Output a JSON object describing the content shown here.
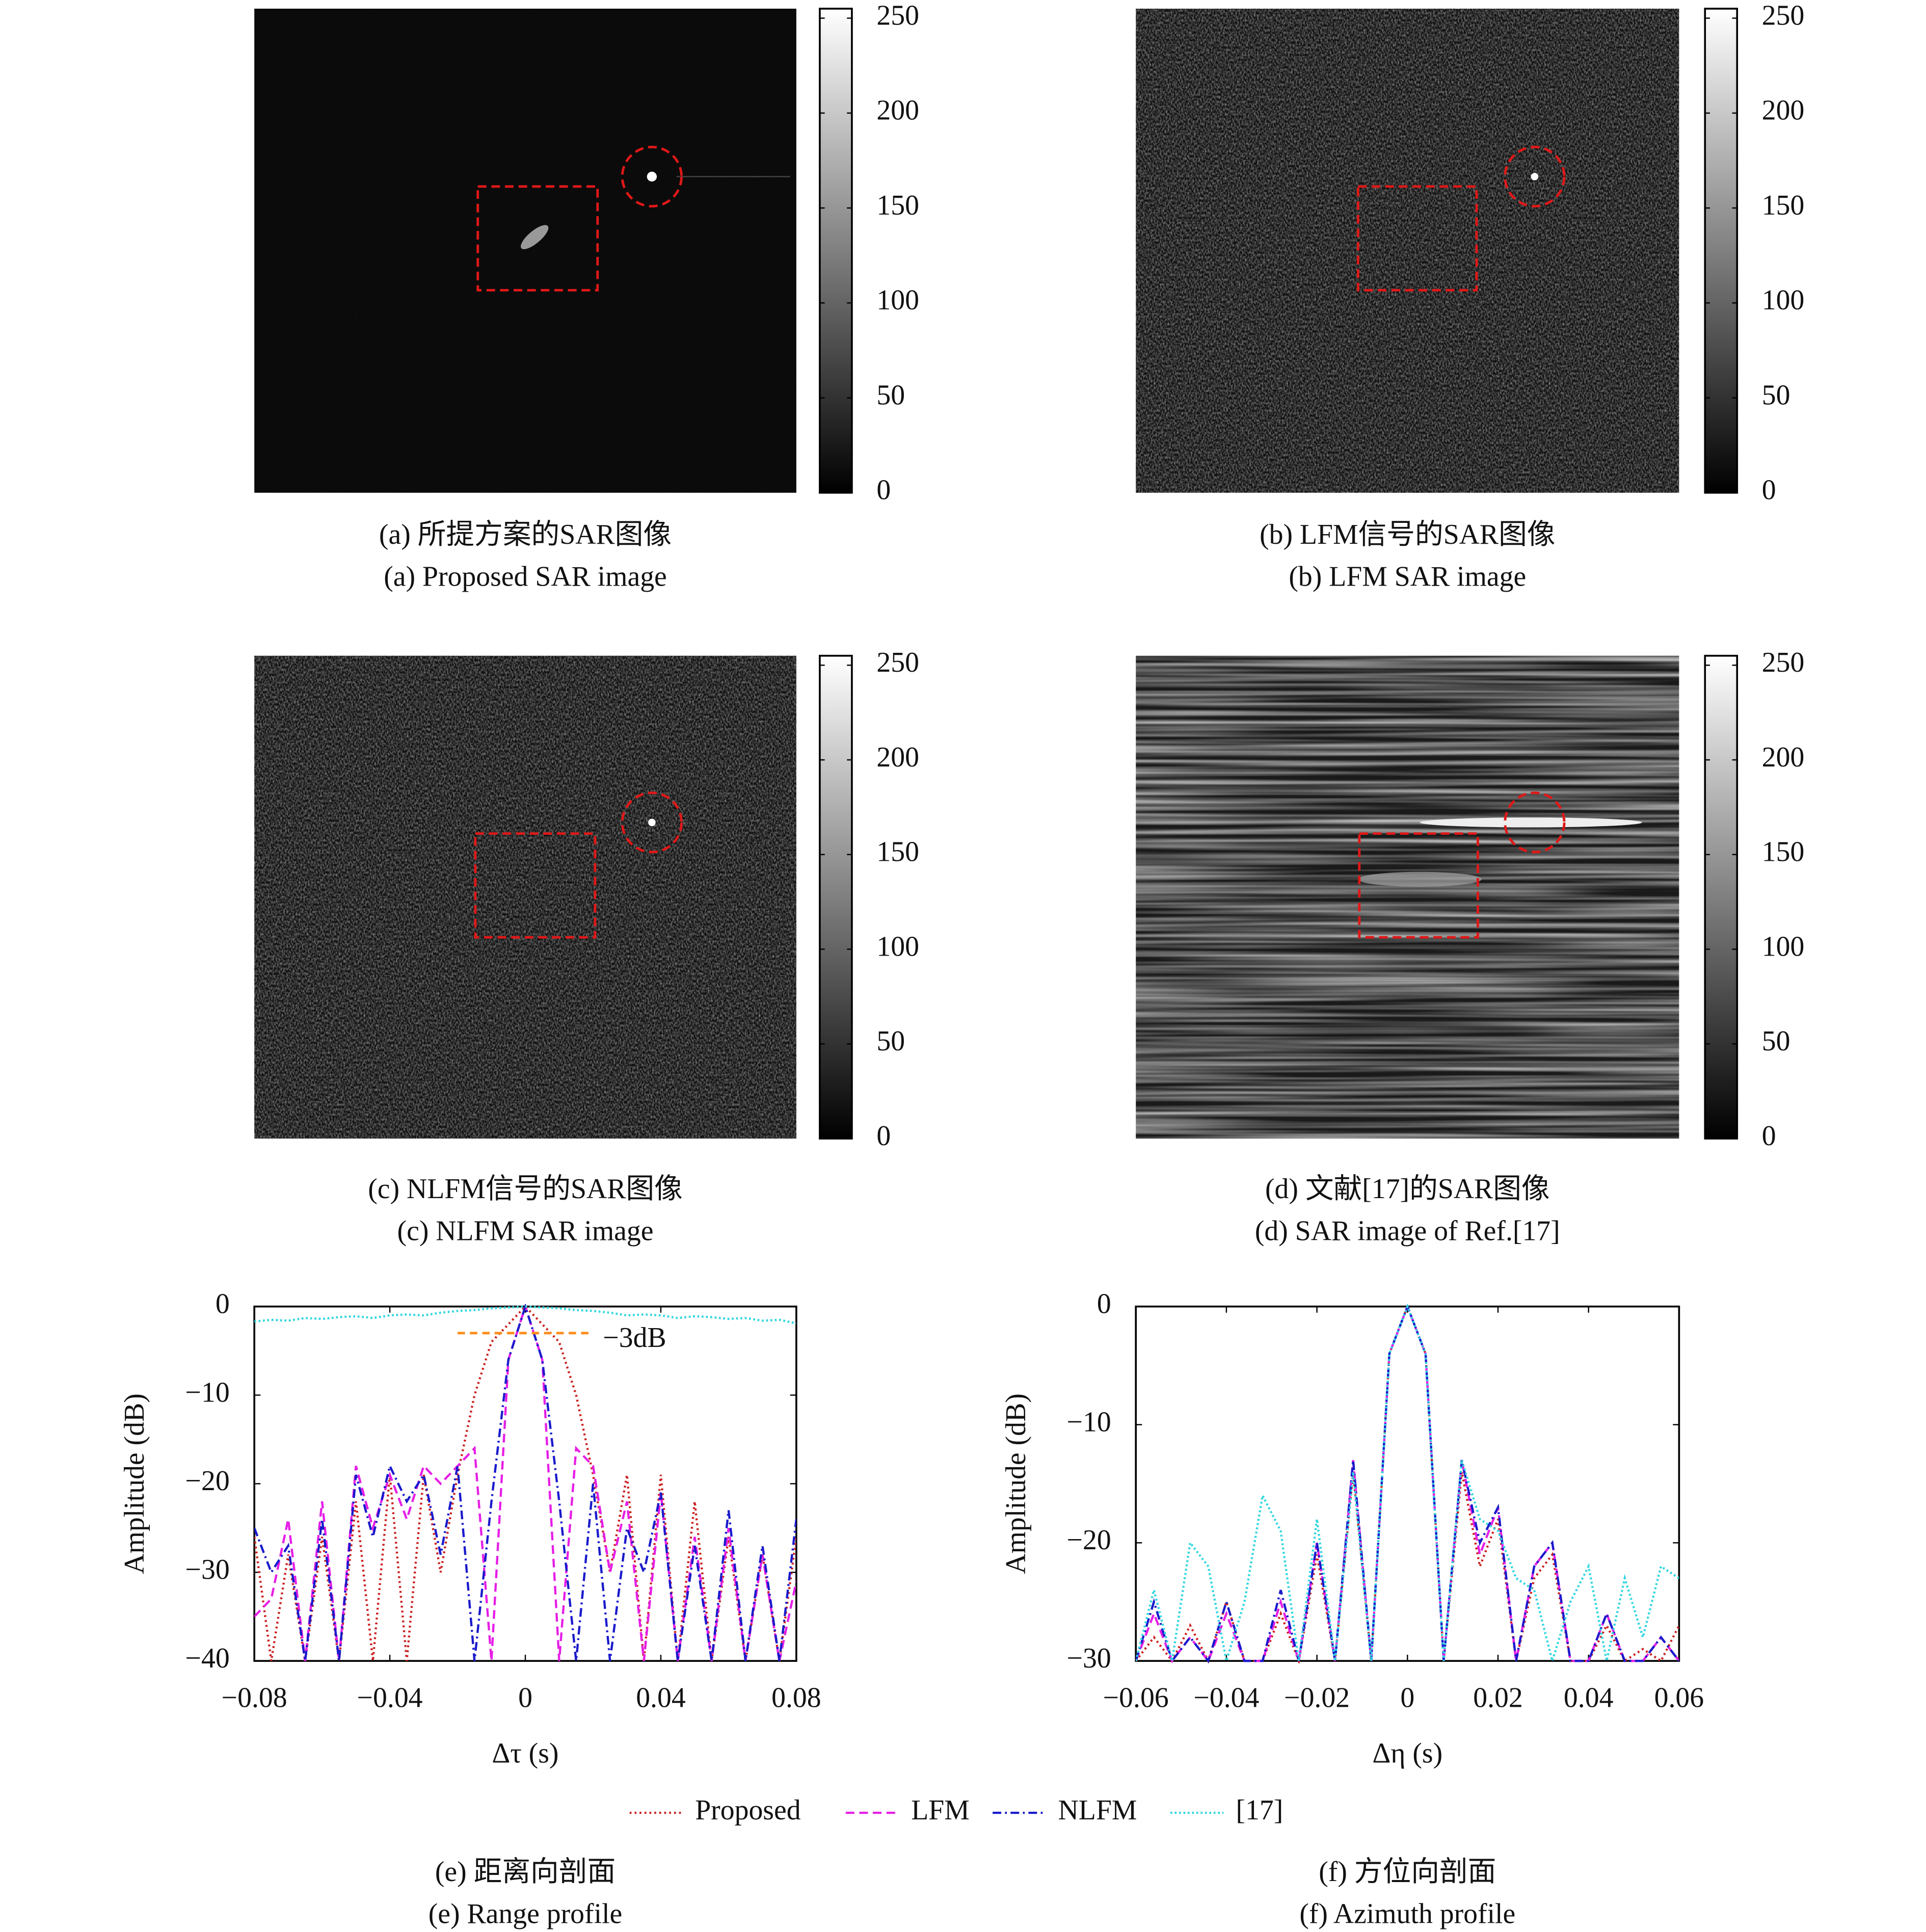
{
  "images": [
    {
      "caption_zh": "(a) 所提方案的SAR图像",
      "caption_en": "(a) Proposed SAR image"
    },
    {
      "caption_zh": "(b) LFM信号的SAR图像",
      "caption_en": "(b) LFM SAR image"
    },
    {
      "caption_zh": "(c) NLFM信号的SAR图像",
      "caption_en": "(c) NLFM SAR image"
    },
    {
      "caption_zh": "(d) 文献[17]的SAR图像",
      "caption_en": "(d) SAR image of Ref.[17]"
    }
  ],
  "colorbar": {
    "ylim": [
      0,
      255
    ],
    "yticks": [
      0,
      50,
      100,
      150,
      200,
      250
    ]
  },
  "chart_data": [
    {
      "type": "line",
      "caption_zh": "(e) 距离向剖面",
      "caption_en": "(e) Range profile",
      "xlabel": "Δτ (s)",
      "ylabel": "Amplitude (dB)",
      "xlim": [
        -0.08,
        0.08
      ],
      "ylim": [
        -40,
        0
      ],
      "xticks": [
        {
          "value": -0.08,
          "label": "−0.08"
        },
        {
          "value": -0.04,
          "label": "−0.04"
        },
        0,
        0.04,
        0.08
      ],
      "yticks": [
        {
          "value": -40,
          "label": "−40"
        },
        {
          "value": -30,
          "label": "−30"
        },
        {
          "value": -20,
          "label": "−20"
        },
        {
          "value": -10,
          "label": "−10"
        },
        0
      ],
      "annotation": {
        "text": "−3dB",
        "y": -3,
        "x": [
          -0.02,
          0.02
        ],
        "color": "#ff8c1a"
      },
      "x": [
        -0.08,
        -0.075,
        -0.07,
        -0.065,
        -0.06,
        -0.055,
        -0.05,
        -0.045,
        -0.04,
        -0.035,
        -0.03,
        -0.025,
        -0.02,
        -0.015,
        -0.01,
        -0.005,
        0,
        0.005,
        0.01,
        0.015,
        0.02,
        0.025,
        0.03,
        0.035,
        0.04,
        0.045,
        0.05,
        0.055,
        0.06,
        0.065,
        0.07,
        0.075,
        0.08
      ],
      "series": [
        {
          "name": "Proposed",
          "color": "#cc1f1f",
          "values": [
            -26,
            -40,
            -28,
            -40,
            -26,
            -40,
            -22,
            -40,
            -19,
            -40,
            -19,
            -30,
            -19,
            -10,
            -4,
            -2,
            0,
            -2,
            -4,
            -10,
            -19,
            -30,
            -19,
            -40,
            -19,
            -40,
            -22,
            -40,
            -26,
            -40,
            -28,
            -40,
            -26
          ]
        },
        {
          "name": "LFM",
          "color": "#e61ee6",
          "values": [
            -35,
            -33,
            -24,
            -40,
            -22,
            -40,
            -18,
            -25,
            -19,
            -24,
            -18,
            -20,
            -18,
            -16,
            -40,
            -6,
            0,
            -6,
            -40,
            -16,
            -18,
            -30,
            -22,
            -40,
            -21,
            -40,
            -26,
            -40,
            -25,
            -40,
            -28,
            -40,
            -31
          ]
        },
        {
          "name": "NLFM",
          "color": "#1a1acc",
          "values": [
            -25,
            -30,
            -27,
            -40,
            -24,
            -40,
            -19,
            -26,
            -18,
            -22,
            -19,
            -28,
            -18,
            -40,
            -22,
            -6,
            0,
            -6,
            -22,
            -40,
            -20,
            -40,
            -25,
            -30,
            -21,
            -40,
            -27,
            -40,
            -23,
            -40,
            -27,
            -40,
            -24
          ]
        },
        {
          "name": "[17]",
          "color": "#2ed6e0",
          "values": [
            -1.7,
            -1.5,
            -1.6,
            -1.3,
            -1.4,
            -1.2,
            -1.1,
            -1.3,
            -1.0,
            -0.9,
            -1.0,
            -0.7,
            -0.5,
            -0.4,
            -0.2,
            -0.1,
            0,
            -0.1,
            -0.2,
            -0.4,
            -0.5,
            -0.7,
            -1.0,
            -0.9,
            -1.0,
            -1.3,
            -1.1,
            -1.2,
            -1.4,
            -1.3,
            -1.6,
            -1.5,
            -1.9
          ]
        }
      ]
    },
    {
      "type": "line",
      "caption_zh": "(f) 方位向剖面",
      "caption_en": "(f) Azimuth profile",
      "xlabel": "Δη (s)",
      "ylabel": "Amplitude (dB)",
      "xlim": [
        -0.06,
        0.06
      ],
      "ylim": [
        -30,
        0
      ],
      "xticks": [
        {
          "value": -0.06,
          "label": "−0.06"
        },
        {
          "value": -0.04,
          "label": "−0.04"
        },
        {
          "value": -0.02,
          "label": "−0.02"
        },
        0,
        0.02,
        0.04,
        0.06
      ],
      "yticks": [
        {
          "value": -30,
          "label": "−30"
        },
        {
          "value": -20,
          "label": "−20"
        },
        {
          "value": -10,
          "label": "−10"
        },
        0
      ],
      "x": [
        -0.06,
        -0.056,
        -0.052,
        -0.048,
        -0.044,
        -0.04,
        -0.036,
        -0.032,
        -0.028,
        -0.024,
        -0.02,
        -0.016,
        -0.012,
        -0.008,
        -0.004,
        0,
        0.004,
        0.008,
        0.012,
        0.016,
        0.02,
        0.024,
        0.028,
        0.032,
        0.036,
        0.04,
        0.044,
        0.048,
        0.052,
        0.056,
        0.06
      ],
      "series": [
        {
          "color": "#cc1f1f",
          "values": [
            -30,
            -28,
            -30,
            -27,
            -30,
            -25,
            -30,
            -30,
            -26,
            -30,
            -21,
            -30,
            -14,
            -30,
            -4,
            0,
            -4,
            -30,
            -14,
            -22,
            -18,
            -30,
            -23,
            -21,
            -30,
            -30,
            -27,
            -30,
            -29,
            -30,
            -27
          ]
        },
        {
          "color": "#e61ee6",
          "values": [
            -30,
            -26,
            -30,
            -28,
            -30,
            -26,
            -30,
            -30,
            -25,
            -30,
            -20,
            -30,
            -13,
            -30,
            -4,
            0,
            -4,
            -30,
            -13,
            -21,
            -17,
            -30,
            -22,
            -20,
            -30,
            -30,
            -26,
            -30,
            -30,
            -28,
            -30
          ]
        },
        {
          "color": "#1a1acc",
          "values": [
            -30,
            -25,
            -30,
            -28,
            -30,
            -25,
            -30,
            -30,
            -24,
            -30,
            -20,
            -30,
            -13,
            -30,
            -4,
            0,
            -4,
            -30,
            -13,
            -20,
            -17,
            -30,
            -22,
            -20,
            -30,
            -30,
            -26,
            -30,
            -30,
            -28,
            -30
          ]
        },
        {
          "color": "#2ed6e0",
          "values": [
            -30,
            -24,
            -30,
            -20,
            -22,
            -30,
            -25,
            -16,
            -19,
            -30,
            -18,
            -30,
            -14,
            -30,
            -4,
            0,
            -4,
            -30,
            -13,
            -18,
            -19,
            -23,
            -24,
            -30,
            -25,
            -22,
            -30,
            -23,
            -28,
            -22,
            -23
          ]
        }
      ]
    }
  ]
}
